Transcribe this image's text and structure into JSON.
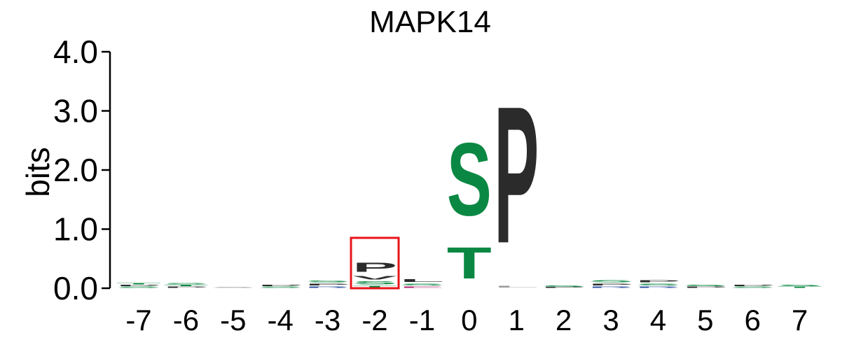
{
  "chart_data": {
    "type": "sequence-logo",
    "title": "MAPK14",
    "ylabel": "bits",
    "ylim": [
      0,
      4
    ],
    "yticks": [
      "0.0",
      "1.0",
      "2.0",
      "3.0",
      "4.0"
    ],
    "positions": [
      "-7",
      "-6",
      "-5",
      "-4",
      "-3",
      "-2",
      "-1",
      "0",
      "1",
      "2",
      "3",
      "4",
      "5",
      "6",
      "7"
    ],
    "highlight_position": "-2",
    "highlight_color": "#e8141a",
    "colors": {
      "hydrophobic": "#2b2b2b",
      "polar": "#0a8843",
      "acidic": "#b01c6e",
      "basic": "#2a4ea0",
      "faint": "#9a9a9a"
    },
    "columns": [
      {
        "position": "-7",
        "letters": [
          {
            "char": "S",
            "bits": 0.03,
            "color": "#0a8843"
          },
          {
            "char": "P",
            "bits": 0.03,
            "color": "#2b2b2b"
          },
          {
            "char": "T",
            "bits": 0.03,
            "color": "#0a8843"
          }
        ]
      },
      {
        "position": "-6",
        "letters": [
          {
            "char": "S",
            "bits": 0.04,
            "color": "#0a8843"
          },
          {
            "char": "P",
            "bits": 0.03,
            "color": "#2b2b2b"
          },
          {
            "char": "T",
            "bits": 0.03,
            "color": "#0a8843"
          }
        ]
      },
      {
        "position": "-5",
        "letters": [
          {
            "char": "S",
            "bits": 0.02,
            "color": "#9a9a9a"
          }
        ]
      },
      {
        "position": "-4",
        "letters": [
          {
            "char": "S",
            "bits": 0.03,
            "color": "#0a8843"
          },
          {
            "char": "P",
            "bits": 0.03,
            "color": "#2b2b2b"
          }
        ]
      },
      {
        "position": "-3",
        "letters": [
          {
            "char": "P",
            "bits": 0.05,
            "color": "#2b2b2b"
          },
          {
            "char": "S",
            "bits": 0.05,
            "color": "#0a8843"
          },
          {
            "char": "R",
            "bits": 0.04,
            "color": "#2a4ea0"
          }
        ]
      },
      {
        "position": "-2",
        "letters": [
          {
            "char": "P",
            "bits": 0.25,
            "color": "#2b2b2b"
          },
          {
            "char": "V",
            "bits": 0.1,
            "color": "#2b2b2b"
          },
          {
            "char": "S",
            "bits": 0.08,
            "color": "#0a8843"
          },
          {
            "char": "T",
            "bits": 0.05,
            "color": "#0a8843"
          }
        ]
      },
      {
        "position": "-1",
        "letters": [
          {
            "char": "L",
            "bits": 0.07,
            "color": "#2b2b2b"
          },
          {
            "char": "S",
            "bits": 0.05,
            "color": "#0a8843"
          },
          {
            "char": "E",
            "bits": 0.04,
            "color": "#b01c6e"
          }
        ]
      },
      {
        "position": "0",
        "letters": [
          {
            "char": "S",
            "bits": 1.97,
            "color": "#0a8843"
          },
          {
            "char": "T",
            "bits": 0.85,
            "color": "#0a8843"
          }
        ]
      },
      {
        "position": "1",
        "letters": [
          {
            "char": "P",
            "bits": 3.7,
            "color": "#2b2b2b"
          },
          {
            "char": "L",
            "bits": 0.05,
            "color": "#9a9a9a"
          }
        ]
      },
      {
        "position": "2",
        "letters": [
          {
            "char": "S",
            "bits": 0.03,
            "color": "#0a8843"
          },
          {
            "char": "P",
            "bits": 0.02,
            "color": "#2b2b2b"
          }
        ]
      },
      {
        "position": "3",
        "letters": [
          {
            "char": "S",
            "bits": 0.06,
            "color": "#0a8843"
          },
          {
            "char": "P",
            "bits": 0.05,
            "color": "#2b2b2b"
          },
          {
            "char": "R",
            "bits": 0.04,
            "color": "#2a4ea0"
          }
        ]
      },
      {
        "position": "4",
        "letters": [
          {
            "char": "P",
            "bits": 0.06,
            "color": "#2b2b2b"
          },
          {
            "char": "S",
            "bits": 0.05,
            "color": "#0a8843"
          },
          {
            "char": "R",
            "bits": 0.04,
            "color": "#2a4ea0"
          }
        ]
      },
      {
        "position": "5",
        "letters": [
          {
            "char": "P",
            "bits": 0.03,
            "color": "#2b2b2b"
          },
          {
            "char": "S",
            "bits": 0.03,
            "color": "#0a8843"
          }
        ]
      },
      {
        "position": "6",
        "letters": [
          {
            "char": "S",
            "bits": 0.03,
            "color": "#0a8843"
          },
          {
            "char": "P",
            "bits": 0.03,
            "color": "#2b2b2b"
          }
        ]
      },
      {
        "position": "7",
        "letters": [
          {
            "char": "S",
            "bits": 0.04,
            "color": "#0a8843"
          },
          {
            "char": "T",
            "bits": 0.03,
            "color": "#0a8843"
          }
        ]
      }
    ]
  }
}
